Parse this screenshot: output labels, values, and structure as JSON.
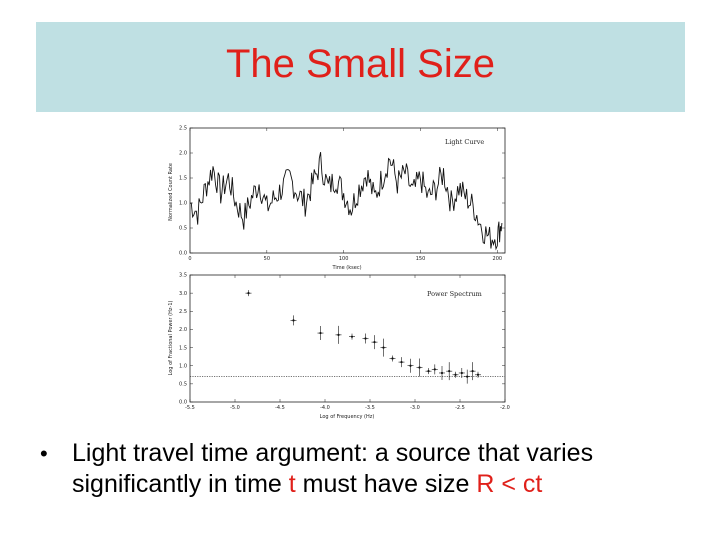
{
  "slide": {
    "title": "The Small Size",
    "bullet": {
      "part1": "Light travel time argument: a source that varies",
      "part2": "significantly in time ",
      "t": "t",
      "part3": " must have size  ",
      "formula": "R < ct"
    }
  },
  "colors": {
    "title_bg": "#bfe0e3",
    "title_text": "#e0201a",
    "accent_red": "#e0201a"
  },
  "chart_data": [
    {
      "type": "line",
      "legend": "Light Curve",
      "xlabel": "Time (ksec)",
      "ylabel": "Normalized Count Rate",
      "xlim": [
        0,
        205
      ],
      "ylim": [
        0,
        2.5
      ],
      "xticks": [
        "0",
        "50",
        "100",
        "150",
        "200"
      ],
      "yticks": [
        "0.0",
        "0.5",
        "1.0",
        "1.5",
        "2.0",
        "2.5"
      ],
      "x": [
        0,
        5,
        10,
        15,
        20,
        25,
        30,
        35,
        40,
        45,
        50,
        55,
        60,
        65,
        70,
        75,
        80,
        85,
        90,
        95,
        100,
        105,
        110,
        115,
        120,
        125,
        130,
        135,
        140,
        145,
        150,
        155,
        160,
        165,
        170,
        175,
        180,
        185,
        190,
        195,
        200,
        203
      ],
      "y": [
        1.0,
        0.8,
        1.3,
        1.7,
        1.2,
        1.5,
        1.0,
        0.7,
        1.1,
        1.4,
        0.9,
        1.1,
        1.3,
        1.5,
        1.2,
        1.0,
        1.4,
        1.8,
        1.3,
        1.5,
        1.2,
        0.9,
        1.3,
        1.6,
        1.1,
        1.5,
        1.9,
        1.4,
        1.6,
        1.2,
        1.5,
        1.1,
        1.3,
        1.6,
        1.0,
        1.3,
        1.1,
        0.9,
        0.5,
        0.3,
        0.35,
        0.6
      ]
    },
    {
      "type": "scatter",
      "legend": "Power Spectrum",
      "xlabel": "Log of Frequency (Hz)",
      "ylabel": "Log of Fractional Power (Hz-1)",
      "xlim": [
        -5.5,
        -2.0
      ],
      "ylim": [
        0,
        3.5
      ],
      "xticks": [
        "-5.5",
        "-5.0",
        "-4.5",
        "-4.0",
        "-3.5",
        "-3.0",
        "-2.5",
        "-2.0"
      ],
      "yticks": [
        "0.0",
        "0.5",
        "1.0",
        "1.5",
        "2.0",
        "2.5",
        "3.0",
        "3.5"
      ],
      "x": [
        -4.85,
        -4.35,
        -4.05,
        -3.85,
        -3.7,
        -3.55,
        -3.45,
        -3.35,
        -3.25,
        -3.15,
        -3.05,
        -2.95,
        -2.85,
        -2.78,
        -2.7,
        -2.62,
        -2.55,
        -2.48,
        -2.42,
        -2.36,
        -2.3
      ],
      "y": [
        3.0,
        2.25,
        1.9,
        1.85,
        1.8,
        1.75,
        1.65,
        1.5,
        1.2,
        1.1,
        1.0,
        0.95,
        0.85,
        0.9,
        0.8,
        0.85,
        0.75,
        0.8,
        0.7,
        0.85,
        0.75
      ],
      "reference_line": 0.7
    }
  ]
}
